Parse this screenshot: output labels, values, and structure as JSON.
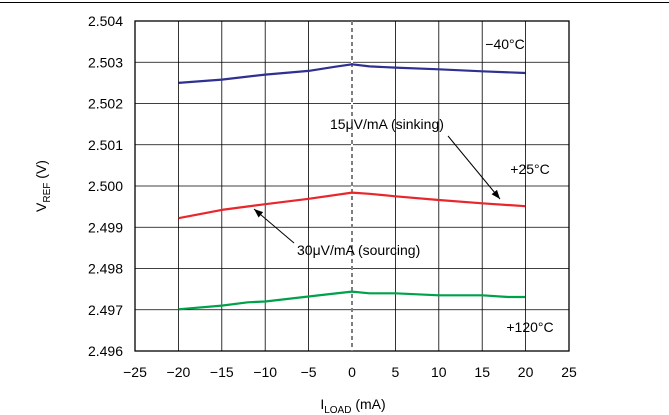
{
  "chart_data": {
    "type": "line",
    "xlabel": "I",
    "xlabel_sub": "LOAD",
    "xlabel_unit": " (mA)",
    "ylabel": "V",
    "ylabel_sub": "REF",
    "ylabel_unit": " (V)",
    "xlim": [
      -25,
      25
    ],
    "ylim": [
      2.496,
      2.504
    ],
    "x_ticks": [
      "−25",
      "−20",
      "−15",
      "−10",
      "−5",
      "0",
      "5",
      "10",
      "15",
      "20",
      "25"
    ],
    "y_ticks": [
      "2.496",
      "2.497",
      "2.498",
      "2.499",
      "2.500",
      "2.501",
      "2.502",
      "2.503",
      "2.504"
    ],
    "grid": true,
    "series": [
      {
        "name": "−40°C",
        "color": "#2e3192",
        "x": [
          -20,
          -15,
          -10,
          -5,
          -2,
          0,
          2,
          5,
          10,
          15,
          20
        ],
        "y": [
          2.5025,
          2.50258,
          2.5027,
          2.50279,
          2.50289,
          2.50295,
          2.5029,
          2.50287,
          2.50283,
          2.50278,
          2.50274
        ]
      },
      {
        "name": "+25°C",
        "color": "#e8262b",
        "x": [
          -20,
          -15,
          -10,
          -5,
          0,
          2,
          5,
          10,
          15,
          20
        ],
        "y": [
          2.49922,
          2.49942,
          2.49956,
          2.49969,
          2.49984,
          2.49981,
          2.49975,
          2.49966,
          2.49958,
          2.49951
        ]
      },
      {
        "name": "+120°C",
        "color": "#00a14b",
        "x": [
          -20,
          -15,
          -12,
          -10,
          -5,
          -3,
          0,
          2,
          5,
          10,
          15,
          18,
          20
        ],
        "y": [
          2.49701,
          2.4971,
          2.49718,
          2.4972,
          2.49732,
          2.49737,
          2.49744,
          2.4974,
          2.4974,
          2.49735,
          2.49735,
          2.49731,
          2.49731
        ]
      }
    ],
    "annotations": [
      {
        "text": "15μV/mA (sinking)",
        "color": "#000000"
      },
      {
        "text": "30μV/mA (sourcing)",
        "color": "#000000"
      }
    ],
    "reference_line": {
      "x": 0,
      "style": "dashed"
    }
  }
}
